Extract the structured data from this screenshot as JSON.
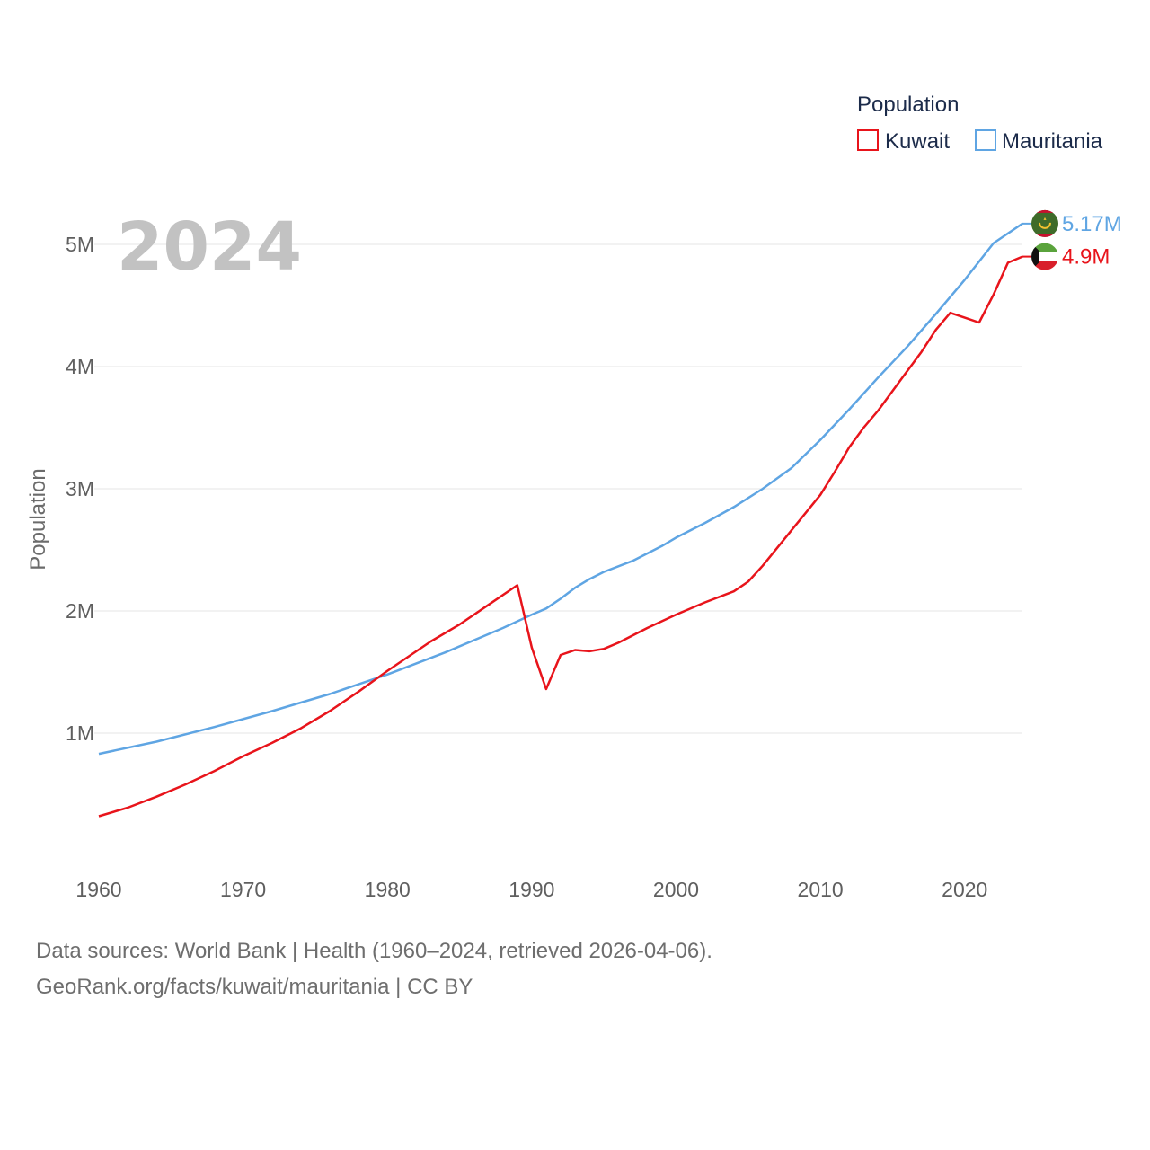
{
  "chart_data": {
    "type": "line",
    "year_label": "2024",
    "ylabel": "Population",
    "xlabel": "",
    "xlim": [
      1960,
      2024
    ],
    "ylim": [
      0,
      5200000
    ],
    "grid": true,
    "x_ticks": [
      1960,
      1970,
      1980,
      1990,
      2000,
      2010,
      2020
    ],
    "x_tick_labels": [
      "1960",
      "1970",
      "1980",
      "1990",
      "2000",
      "2010",
      "2020"
    ],
    "y_ticks": [
      1000000,
      2000000,
      3000000,
      4000000,
      5000000
    ],
    "y_tick_labels": [
      "1M",
      "2M",
      "3M",
      "4M",
      "5M"
    ],
    "legend": {
      "title": "Population",
      "placement": "top-right",
      "items": [
        {
          "name": "Kuwait",
          "color": "#e8141b"
        },
        {
          "name": "Mauritania",
          "color": "#5fa5e3"
        }
      ]
    },
    "series": [
      {
        "name": "Kuwait",
        "color": "#e8141b",
        "end_label": "4.9M",
        "flag": "kuwait-flag",
        "x": [
          1960,
          1962,
          1964,
          1966,
          1968,
          1970,
          1972,
          1974,
          1976,
          1978,
          1980,
          1983,
          1985,
          1987,
          1989,
          1990,
          1991,
          1992,
          1993,
          1994,
          1995,
          1996,
          1998,
          2000,
          2002,
          2004,
          2005,
          2006,
          2008,
          2010,
          2011,
          2012,
          2013,
          2014,
          2016,
          2017,
          2018,
          2019,
          2020,
          2021,
          2022,
          2023,
          2024
        ],
        "values": [
          320000,
          390000,
          480000,
          580000,
          690000,
          810000,
          920000,
          1040000,
          1180000,
          1340000,
          1510000,
          1750000,
          1890000,
          2050000,
          2210000,
          1700000,
          1360000,
          1640000,
          1680000,
          1670000,
          1690000,
          1740000,
          1860000,
          1970000,
          2070000,
          2160000,
          2240000,
          2370000,
          2660000,
          2950000,
          3140000,
          3340000,
          3500000,
          3640000,
          3960000,
          4120000,
          4300000,
          4440000,
          4400000,
          4360000,
          4590000,
          4850000,
          4900000
        ]
      },
      {
        "name": "Mauritania",
        "color": "#5fa5e3",
        "end_label": "5.17M",
        "flag": "mauritania-flag",
        "x": [
          1960,
          1964,
          1968,
          1972,
          1976,
          1980,
          1984,
          1988,
          1990,
          1991,
          1992,
          1993,
          1994,
          1995,
          1997,
          1999,
          2000,
          2002,
          2004,
          2006,
          2008,
          2010,
          2012,
          2014,
          2016,
          2018,
          2020,
          2022,
          2024
        ],
        "values": [
          830000,
          930000,
          1050000,
          1180000,
          1320000,
          1480000,
          1660000,
          1860000,
          1970000,
          2020000,
          2100000,
          2190000,
          2260000,
          2320000,
          2410000,
          2530000,
          2600000,
          2720000,
          2850000,
          3000000,
          3170000,
          3400000,
          3650000,
          3910000,
          4160000,
          4430000,
          4710000,
          5010000,
          5170000
        ]
      }
    ]
  },
  "footer": {
    "line1": "Data sources: World Bank | Health (1960–2024, retrieved 2026-04-06).",
    "line2": "GeoRank.org/facts/kuwait/mauritania | CC BY"
  }
}
